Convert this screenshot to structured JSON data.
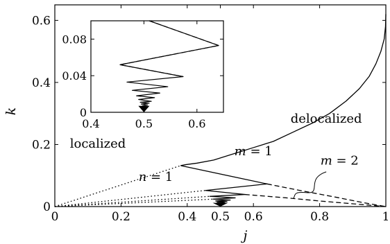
{
  "chart_data": [
    {
      "type": "line",
      "xlabel": "j",
      "ylabel": "k",
      "xlim": [
        0,
        1
      ],
      "ylim": [
        0,
        0.65
      ],
      "xticks": [
        "0",
        "0.2",
        "0.4",
        "0.5",
        "0.6",
        "0.8",
        "1"
      ],
      "yticks": [
        "0",
        "0.2",
        "0.4",
        "0.6"
      ],
      "grid": false,
      "legend": "none",
      "series": [
        {
          "style": "solid",
          "x": [
            1.0,
            0.999,
            0.995,
            0.985,
            0.97,
            0.95,
            0.92,
            0.88,
            0.83,
            0.78,
            0.72,
            0.66,
            0.6,
            0.54,
            0.48,
            0.43,
            0.395,
            0.38
          ],
          "y": [
            0.62,
            0.58,
            0.54,
            0.5,
            0.46,
            0.42,
            0.38,
            0.34,
            0.3,
            0.27,
            0.24,
            0.21,
            0.19,
            0.17,
            0.15,
            0.14,
            0.135,
            0.132
          ]
        },
        {
          "style": "solid",
          "x": [
            0.38,
            0.641,
            0.455,
            0.574,
            0.468,
            0.545,
            0.478,
            0.53,
            0.486,
            0.52,
            0.49,
            0.514
          ],
          "y": [
            0.132,
            0.073,
            0.052,
            0.039,
            0.033,
            0.028,
            0.024,
            0.021,
            0.018,
            0.016,
            0.014,
            0.012
          ]
        },
        {
          "style": "dashed",
          "x": [
            0.641,
            0.75,
            0.85,
            0.93,
            1.0
          ],
          "y": [
            0.073,
            0.05,
            0.03,
            0.013,
            0.0
          ]
        },
        {
          "style": "dashed",
          "x": [
            0.574,
            0.7,
            0.8,
            0.9,
            1.0
          ],
          "y": [
            0.039,
            0.028,
            0.018,
            0.009,
            0.0
          ]
        },
        {
          "style": "dotted",
          "x": [
            0.0,
            0.38
          ],
          "y": [
            0.0,
            0.132
          ]
        },
        {
          "style": "dotted",
          "x": [
            0.0,
            0.455
          ],
          "y": [
            0.0,
            0.052
          ]
        },
        {
          "style": "dotted",
          "x": [
            0.0,
            0.468
          ],
          "y": [
            0.0,
            0.033
          ]
        },
        {
          "style": "dotted",
          "x": [
            0.0,
            0.478
          ],
          "y": [
            0.0,
            0.024
          ]
        }
      ],
      "annotations": [
        {
          "text": "delocalized",
          "x": 0.82,
          "y": 0.27
        },
        {
          "text": "localized",
          "x": 0.13,
          "y": 0.19
        },
        {
          "text": "m = 1",
          "x": 0.6,
          "y": 0.165
        },
        {
          "text": "m = 2",
          "x": 0.86,
          "y": 0.135
        },
        {
          "text": "n = 1",
          "x": 0.305,
          "y": 0.083
        }
      ]
    },
    {
      "type": "line",
      "inset": true,
      "xlim": [
        0.4,
        0.65
      ],
      "ylim": [
        0,
        0.1
      ],
      "xticks": [
        "0.4",
        "0.5",
        "0.6"
      ],
      "yticks": [
        "0",
        "0.04",
        "0.08"
      ],
      "series": [
        {
          "style": "solid",
          "x": [
            0.51,
            0.641,
            0.455,
            0.574,
            0.468,
            0.545,
            0.478,
            0.53,
            0.486,
            0.52,
            0.49,
            0.514,
            0.493,
            0.51,
            0.495,
            0.507,
            0.497,
            0.504,
            0.498,
            0.502,
            0.499,
            0.501,
            0.5
          ],
          "y": [
            0.1,
            0.073,
            0.052,
            0.039,
            0.033,
            0.028,
            0.024,
            0.021,
            0.018,
            0.016,
            0.014,
            0.012,
            0.011,
            0.01,
            0.009,
            0.008,
            0.007,
            0.006,
            0.005,
            0.004,
            0.003,
            0.002,
            0.0
          ]
        },
        {
          "style": "dashed",
          "x": [
            0.51,
            0.641,
            0.455,
            0.574
          ],
          "y": [
            0.1,
            0.073,
            0.052,
            0.039
          ]
        }
      ]
    }
  ]
}
